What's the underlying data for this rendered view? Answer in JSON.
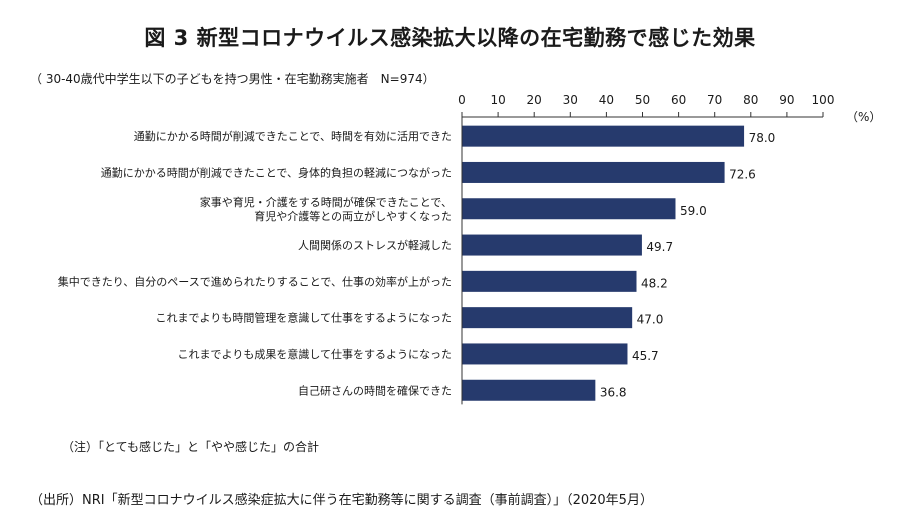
{
  "title": "図 3 新型コロナウイルス感染拡大以降の在宅勤務で感じた効果",
  "subtitle": "（ 30-40歳代中学生以下の子どもを持つ男性・在宅勤務実施者　N=974）",
  "note": "（注）「とても感じた」と「やや感じた」の合計",
  "source": "（出所）NRI「新型コロナウイルス感染症拡大に伴う在宅勤務等に関する調査（事前調査）」（2020年5月）",
  "chart_data": {
    "type": "bar",
    "orientation": "horizontal",
    "title": "図 3 新型コロナウイルス感染拡大以降の在宅勤務で感じた効果",
    "unit_label": "（%）",
    "xlim": [
      0,
      100
    ],
    "ticks": [
      0,
      10,
      20,
      30,
      40,
      50,
      60,
      70,
      80,
      90,
      100
    ],
    "categories": [
      [
        "通勤にかかる時間が削減できたことで、時間を有効に活用できた"
      ],
      [
        "通勤にかかる時間が削減できたことで、身体的負担の軽減につながった"
      ],
      [
        "家事や育児・介護をする時間が確保できたことで、",
        "育児や介護等との両立がしやすくなった"
      ],
      [
        "人間関係のストレスが軽減した"
      ],
      [
        "集中できたり、自分のペースで進められたりすることで、仕事の効率が上がった"
      ],
      [
        "これまでよりも時間管理を意識して仕事をするようになった"
      ],
      [
        "これまでよりも成果を意識して仕事をするようになった"
      ],
      [
        "自己研さんの時間を確保できた"
      ]
    ],
    "values": [
      78.0,
      72.6,
      59.0,
      49.7,
      48.2,
      47.0,
      45.7,
      36.8
    ],
    "value_labels": [
      "78.0",
      "72.6",
      "59.0",
      "49.7",
      "48.2",
      "47.0",
      "45.7",
      "36.8"
    ],
    "bar_color": "#263a6d"
  }
}
